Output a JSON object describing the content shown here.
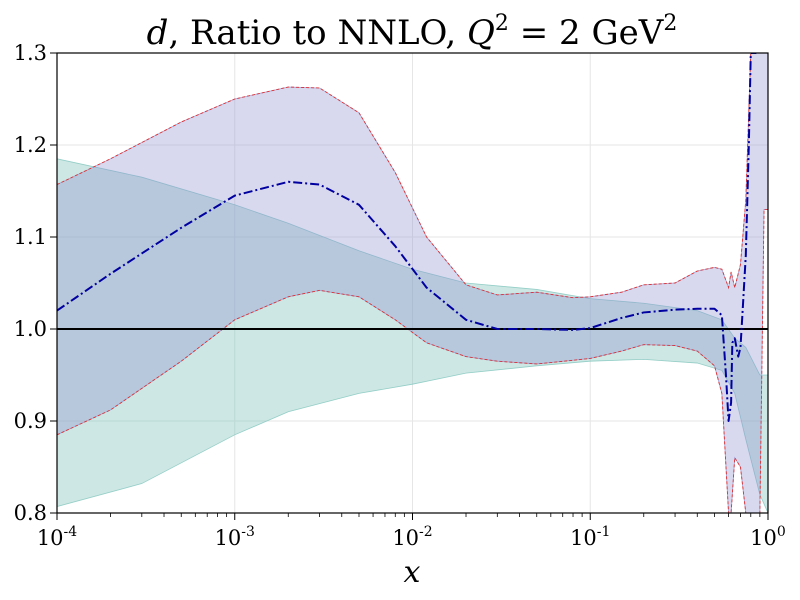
{
  "chart_data": {
    "type": "area",
    "title": {
      "var": "d",
      "main": ", Ratio to NNLO, ",
      "q": "Q",
      "q_exp": "2",
      "eq": " = 2 GeV",
      "unit_exp": "2"
    },
    "xlabel": "x",
    "ylabel": "",
    "xscale": "log",
    "xlim": [
      0.0001,
      1
    ],
    "ylim": [
      0.8,
      1.3
    ],
    "grid": true,
    "x_ticks": [
      {
        "value": 0.0001,
        "base": "10",
        "exp": "-4"
      },
      {
        "value": 0.001,
        "base": "10",
        "exp": "-3"
      },
      {
        "value": 0.01,
        "base": "10",
        "exp": "-2"
      },
      {
        "value": 0.1,
        "base": "10",
        "exp": "-1"
      },
      {
        "value": 1,
        "base": "10",
        "exp": "0"
      }
    ],
    "y_ticks": [
      {
        "value": 0.8,
        "label": "0.8"
      },
      {
        "value": 0.9,
        "label": "0.9"
      },
      {
        "value": 1.0,
        "label": "1.0"
      },
      {
        "value": 1.1,
        "label": "1.1"
      },
      {
        "value": 1.2,
        "label": "1.2"
      },
      {
        "value": 1.3,
        "label": "1.3"
      }
    ],
    "reference_line": 1.0,
    "series": [
      {
        "name": "teal-band",
        "kind": "band",
        "fill": "#7fc4bb",
        "opacity": 0.4,
        "x": [
          0.0001,
          0.0003,
          0.001,
          0.002,
          0.005,
          0.01,
          0.02,
          0.05,
          0.1,
          0.2,
          0.4,
          0.55,
          0.65,
          0.75,
          0.9,
          1.0
        ],
        "upper": [
          1.185,
          1.165,
          1.135,
          1.115,
          1.085,
          1.065,
          1.05,
          1.043,
          1.033,
          1.028,
          1.02,
          1.01,
          0.99,
          0.98,
          0.95,
          0.95
        ],
        "lower": [
          0.807,
          0.832,
          0.885,
          0.91,
          0.93,
          0.94,
          0.952,
          0.96,
          0.965,
          0.967,
          0.963,
          0.955,
          0.93,
          0.88,
          0.82,
          0.8
        ]
      },
      {
        "name": "purple-band",
        "kind": "band",
        "fill": "#8f8fd0",
        "opacity": 0.35,
        "edge_color": "#e03030",
        "x": [
          0.0001,
          0.0002,
          0.0005,
          0.001,
          0.002,
          0.003,
          0.005,
          0.008,
          0.012,
          0.02,
          0.03,
          0.05,
          0.08,
          0.1,
          0.15,
          0.2,
          0.3,
          0.4,
          0.5,
          0.55,
          0.6,
          0.62,
          0.65,
          0.7,
          0.75,
          0.8,
          0.85,
          0.9,
          0.95,
          1.0
        ],
        "upper": [
          1.157,
          1.185,
          1.225,
          1.25,
          1.263,
          1.262,
          1.235,
          1.17,
          1.1,
          1.048,
          1.037,
          1.04,
          1.034,
          1.035,
          1.04,
          1.048,
          1.05,
          1.063,
          1.067,
          1.065,
          1.045,
          1.062,
          1.045,
          1.07,
          1.14,
          1.3,
          1.3,
          1.3,
          1.3,
          1.3
        ],
        "lower": [
          0.885,
          0.912,
          0.965,
          1.01,
          1.035,
          1.042,
          1.035,
          1.01,
          0.985,
          0.97,
          0.965,
          0.962,
          0.966,
          0.968,
          0.976,
          0.983,
          0.982,
          0.976,
          0.96,
          0.93,
          0.8,
          0.8,
          0.86,
          0.85,
          0.8,
          0.8,
          0.8,
          0.8,
          1.13,
          1.13
        ]
      },
      {
        "name": "central",
        "kind": "line",
        "color": "#0000a0",
        "dash": "dashdot",
        "x": [
          0.0001,
          0.0002,
          0.0005,
          0.001,
          0.002,
          0.003,
          0.005,
          0.008,
          0.012,
          0.02,
          0.03,
          0.05,
          0.08,
          0.1,
          0.15,
          0.2,
          0.3,
          0.4,
          0.5,
          0.55,
          0.58,
          0.6,
          0.62,
          0.63,
          0.65,
          0.68,
          0.7,
          0.72,
          0.75,
          0.78,
          0.8,
          0.83,
          0.86
        ],
        "values": [
          1.02,
          1.06,
          1.11,
          1.145,
          1.16,
          1.157,
          1.135,
          1.09,
          1.045,
          1.01,
          1.0,
          1.0,
          0.999,
          1.001,
          1.012,
          1.018,
          1.021,
          1.022,
          1.022,
          1.015,
          0.95,
          0.9,
          0.92,
          0.985,
          0.99,
          0.97,
          0.98,
          1.02,
          1.08,
          1.2,
          1.3,
          1.3,
          1.3
        ]
      }
    ]
  }
}
